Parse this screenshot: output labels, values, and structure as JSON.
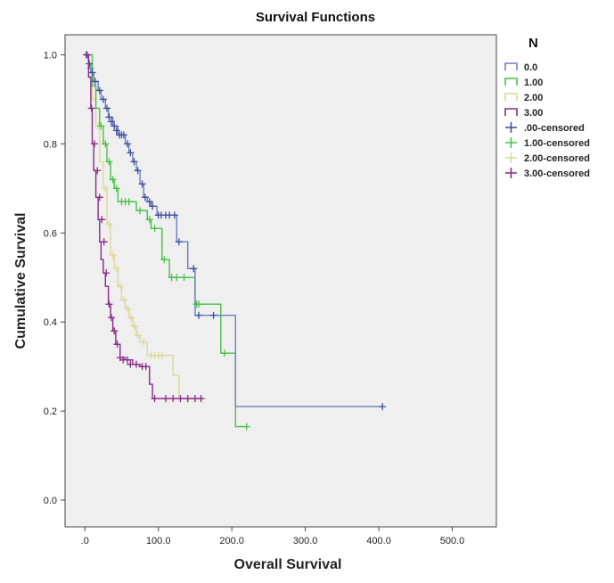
{
  "chart_data": {
    "type": "line",
    "subtype": "kaplan-meier-survival",
    "title": "Survival Functions",
    "xlabel": "Overall Survival",
    "ylabel": "Cumulative Survival",
    "xlim": [
      -27,
      560
    ],
    "ylim": [
      -0.06,
      1.045
    ],
    "xticks": [
      0,
      100,
      200,
      300,
      400,
      500
    ],
    "xtick_labels": [
      ".0",
      "100.0",
      "200.0",
      "300.0",
      "400.0",
      "500.0"
    ],
    "yticks": [
      0.0,
      0.2,
      0.4,
      0.6,
      0.8,
      1.0
    ],
    "ytick_labels": [
      "0.0",
      "0.2",
      "0.4",
      "0.6",
      "0.8",
      "1.0"
    ],
    "legend_title": "N",
    "legend_position": "right",
    "legend_entries": [
      {
        "label": "0.0",
        "kind": "line",
        "color": "#6a7fc4"
      },
      {
        "label": "1.00",
        "kind": "line",
        "color": "#48c048"
      },
      {
        "label": "2.00",
        "kind": "line",
        "color": "#dcd89a"
      },
      {
        "label": "3.00",
        "kind": "line",
        "color": "#8a2a86"
      },
      {
        "label": ".00-censored",
        "kind": "censor",
        "color": "#3b4f9c"
      },
      {
        "label": "1.00-censored",
        "kind": "censor",
        "color": "#48c048"
      },
      {
        "label": "2.00-censored",
        "kind": "censor",
        "color": "#dcd89a"
      },
      {
        "label": "3.00-censored",
        "kind": "censor",
        "color": "#8a2a86"
      }
    ],
    "series": [
      {
        "name": "0.0",
        "color": "#6a7fc4",
        "censor_color": "#3b4f9c",
        "steps": [
          [
            0,
            1.0
          ],
          [
            5,
            0.98
          ],
          [
            8,
            0.96
          ],
          [
            12,
            0.94
          ],
          [
            18,
            0.92
          ],
          [
            22,
            0.9
          ],
          [
            28,
            0.88
          ],
          [
            32,
            0.86
          ],
          [
            38,
            0.84
          ],
          [
            45,
            0.82
          ],
          [
            55,
            0.8
          ],
          [
            60,
            0.78
          ],
          [
            65,
            0.76
          ],
          [
            70,
            0.74
          ],
          [
            75,
            0.71
          ],
          [
            80,
            0.68
          ],
          [
            85,
            0.67
          ],
          [
            90,
            0.66
          ],
          [
            98,
            0.64
          ],
          [
            110,
            0.64
          ],
          [
            125,
            0.58
          ],
          [
            140,
            0.52
          ],
          [
            150,
            0.415
          ],
          [
            200,
            0.415
          ],
          [
            205,
            0.21
          ],
          [
            405,
            0.21
          ]
        ],
        "censored": [
          [
            2,
            1.0
          ],
          [
            6,
            0.98
          ],
          [
            10,
            0.96
          ],
          [
            14,
            0.94
          ],
          [
            20,
            0.92
          ],
          [
            25,
            0.9
          ],
          [
            30,
            0.88
          ],
          [
            33,
            0.86
          ],
          [
            36,
            0.85
          ],
          [
            40,
            0.84
          ],
          [
            43,
            0.83
          ],
          [
            47,
            0.82
          ],
          [
            50,
            0.82
          ],
          [
            53,
            0.82
          ],
          [
            58,
            0.8
          ],
          [
            62,
            0.78
          ],
          [
            67,
            0.76
          ],
          [
            72,
            0.74
          ],
          [
            78,
            0.71
          ],
          [
            82,
            0.68
          ],
          [
            88,
            0.67
          ],
          [
            92,
            0.66
          ],
          [
            100,
            0.64
          ],
          [
            104,
            0.64
          ],
          [
            110,
            0.64
          ],
          [
            115,
            0.64
          ],
          [
            122,
            0.64
          ],
          [
            128,
            0.58
          ],
          [
            148,
            0.52
          ],
          [
            155,
            0.415
          ],
          [
            175,
            0.415
          ],
          [
            405,
            0.21
          ]
        ]
      },
      {
        "name": "1.00",
        "color": "#48c048",
        "censor_color": "#48c048",
        "steps": [
          [
            0,
            1.0
          ],
          [
            10,
            0.93
          ],
          [
            15,
            0.88
          ],
          [
            20,
            0.84
          ],
          [
            25,
            0.8
          ],
          [
            30,
            0.76
          ],
          [
            35,
            0.72
          ],
          [
            40,
            0.7
          ],
          [
            45,
            0.67
          ],
          [
            65,
            0.67
          ],
          [
            70,
            0.65
          ],
          [
            85,
            0.63
          ],
          [
            90,
            0.61
          ],
          [
            100,
            0.61
          ],
          [
            105,
            0.54
          ],
          [
            115,
            0.5
          ],
          [
            140,
            0.5
          ],
          [
            150,
            0.44
          ],
          [
            180,
            0.44
          ],
          [
            185,
            0.33
          ],
          [
            200,
            0.33
          ],
          [
            205,
            0.165
          ],
          [
            220,
            0.165
          ]
        ],
        "censored": [
          [
            8,
            0.97
          ],
          [
            22,
            0.84
          ],
          [
            28,
            0.8
          ],
          [
            33,
            0.76
          ],
          [
            38,
            0.72
          ],
          [
            43,
            0.7
          ],
          [
            50,
            0.67
          ],
          [
            55,
            0.67
          ],
          [
            60,
            0.67
          ],
          [
            75,
            0.65
          ],
          [
            88,
            0.63
          ],
          [
            95,
            0.61
          ],
          [
            108,
            0.54
          ],
          [
            118,
            0.5
          ],
          [
            125,
            0.5
          ],
          [
            135,
            0.5
          ],
          [
            152,
            0.44
          ],
          [
            155,
            0.44
          ],
          [
            190,
            0.33
          ],
          [
            220,
            0.165
          ]
        ]
      },
      {
        "name": "2.00",
        "color": "#dcd89a",
        "censor_color": "#dcd89a",
        "steps": [
          [
            0,
            1.0
          ],
          [
            5,
            0.95
          ],
          [
            10,
            0.9
          ],
          [
            15,
            0.84
          ],
          [
            20,
            0.76
          ],
          [
            25,
            0.7
          ],
          [
            30,
            0.62
          ],
          [
            35,
            0.55
          ],
          [
            40,
            0.52
          ],
          [
            45,
            0.48
          ],
          [
            50,
            0.45
          ],
          [
            55,
            0.43
          ],
          [
            60,
            0.41
          ],
          [
            65,
            0.39
          ],
          [
            70,
            0.37
          ],
          [
            75,
            0.355
          ],
          [
            85,
            0.325
          ],
          [
            110,
            0.325
          ],
          [
            120,
            0.28
          ],
          [
            128,
            0.228
          ],
          [
            165,
            0.228
          ]
        ],
        "censored": [
          [
            18,
            0.84
          ],
          [
            28,
            0.7
          ],
          [
            33,
            0.62
          ],
          [
            38,
            0.55
          ],
          [
            43,
            0.52
          ],
          [
            48,
            0.48
          ],
          [
            53,
            0.45
          ],
          [
            58,
            0.43
          ],
          [
            63,
            0.41
          ],
          [
            68,
            0.39
          ],
          [
            72,
            0.37
          ],
          [
            80,
            0.355
          ],
          [
            90,
            0.325
          ],
          [
            95,
            0.325
          ],
          [
            100,
            0.325
          ],
          [
            105,
            0.325
          ],
          [
            130,
            0.228
          ],
          [
            140,
            0.228
          ],
          [
            150,
            0.228
          ],
          [
            158,
            0.228
          ]
        ]
      },
      {
        "name": "3.00",
        "color": "#8a2a86",
        "censor_color": "#8a2a86",
        "steps": [
          [
            0,
            1.0
          ],
          [
            5,
            0.95
          ],
          [
            8,
            0.88
          ],
          [
            10,
            0.8
          ],
          [
            12,
            0.74
          ],
          [
            15,
            0.68
          ],
          [
            18,
            0.63
          ],
          [
            20,
            0.58
          ],
          [
            22,
            0.54
          ],
          [
            25,
            0.51
          ],
          [
            28,
            0.48
          ],
          [
            32,
            0.44
          ],
          [
            35,
            0.41
          ],
          [
            38,
            0.38
          ],
          [
            42,
            0.35
          ],
          [
            48,
            0.32
          ],
          [
            55,
            0.315
          ],
          [
            65,
            0.305
          ],
          [
            75,
            0.3
          ],
          [
            88,
            0.26
          ],
          [
            92,
            0.228
          ],
          [
            160,
            0.228
          ]
        ],
        "censored": [
          [
            3,
            1.0
          ],
          [
            9,
            0.88
          ],
          [
            13,
            0.8
          ],
          [
            17,
            0.74
          ],
          [
            20,
            0.68
          ],
          [
            23,
            0.63
          ],
          [
            26,
            0.58
          ],
          [
            29,
            0.51
          ],
          [
            33,
            0.44
          ],
          [
            36,
            0.41
          ],
          [
            40,
            0.38
          ],
          [
            44,
            0.35
          ],
          [
            48,
            0.32
          ],
          [
            52,
            0.315
          ],
          [
            58,
            0.315
          ],
          [
            62,
            0.305
          ],
          [
            70,
            0.305
          ],
          [
            78,
            0.3
          ],
          [
            83,
            0.3
          ],
          [
            95,
            0.228
          ],
          [
            110,
            0.228
          ],
          [
            120,
            0.228
          ],
          [
            130,
            0.228
          ],
          [
            140,
            0.228
          ],
          [
            150,
            0.228
          ],
          [
            158,
            0.228
          ]
        ]
      }
    ]
  }
}
